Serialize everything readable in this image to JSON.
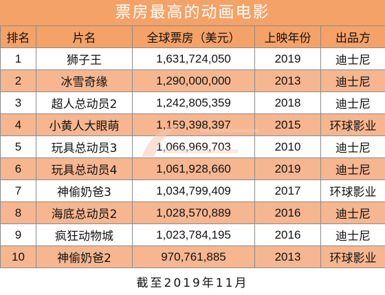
{
  "title": "票房最高的动画电影",
  "columns": [
    "排名",
    "片名",
    "全球票房（美元）",
    "上映年份",
    "出品方"
  ],
  "rows": [
    {
      "rank": "1",
      "title": "狮子王",
      "gross": "1,631,724,050",
      "year": "2019",
      "studio": "迪士尼"
    },
    {
      "rank": "2",
      "title": "冰雪奇缘",
      "gross": "1,290,000,000",
      "year": "2013",
      "studio": "迪士尼"
    },
    {
      "rank": "3",
      "title": "超人总动员2",
      "gross": "1,242,805,359",
      "year": "2018",
      "studio": "迪士尼"
    },
    {
      "rank": "4",
      "title": "小黄人大眼萌",
      "gross": "1,159,398,397",
      "year": "2015",
      "studio": "环球影业"
    },
    {
      "rank": "5",
      "title": "玩具总动员3",
      "gross": "1,066,969,703",
      "year": "2010",
      "studio": "迪士尼"
    },
    {
      "rank": "6",
      "title": "玩具总动员4",
      "gross": "1,061,928,660",
      "year": "2019",
      "studio": "迪士尼"
    },
    {
      "rank": "7",
      "title": "神偷奶爸3",
      "gross": "1,034,799,409",
      "year": "2017",
      "studio": "环球影业"
    },
    {
      "rank": "8",
      "title": "海底总动员2",
      "gross": "1,028,570,889",
      "year": "2016",
      "studio": "迪士尼"
    },
    {
      "rank": "9",
      "title": "疯狂动物城",
      "gross": "1,023,784,195",
      "year": "2016",
      "studio": "迪士尼"
    },
    {
      "rank": "10",
      "title": "神偷奶爸2",
      "gross": "970,761,885",
      "year": "2013",
      "studio": "环球影业"
    }
  ],
  "note": "截至2019年11月",
  "colors": {
    "header": "#f4a267",
    "stripe": "#f6b690",
    "border": "#8a8a8a"
  }
}
